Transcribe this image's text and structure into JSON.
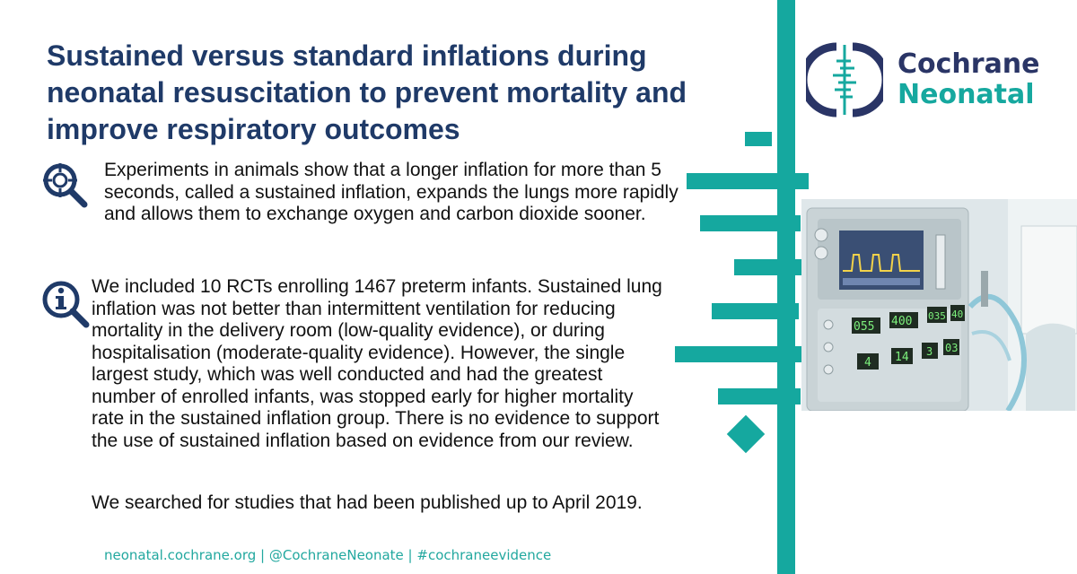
{
  "title": "Sustained versus standard inflations during neonatal resuscitation to prevent mortality and improve respiratory outcomes",
  "paragraphs": {
    "animals": "Experiments in animals show that a longer inflation for more than 5 seconds, called a sustained inflation, expands the lungs more rapidly and allows them to exchange oxygen and carbon dioxide sooner.",
    "results": "We included 10 RCTs enrolling 1467 preterm infants. Sustained lung inflation was not better than intermittent ventilation for reducing mortality in the delivery room (low-quality evidence), or during hospitalisation (moderate-quality evidence). However, the single largest study, which was well conducted and had the greatest number of enrolled infants, was stopped early for higher mortality rate in the sustained inflation group. There is no evidence to support the use of sustained inflation based on evidence from our review.",
    "search": "We searched for studies that had been published up to April 2019."
  },
  "icons": {
    "search": "magnifier-crosshair-icon",
    "info": "magnifier-info-icon"
  },
  "logo": {
    "line1": "Cochrane",
    "line2": "Neonatal"
  },
  "footer": "neonatal.cochrane.org | @CochraneNeonate | #cochraneevidence",
  "ventilator_readouts": [
    "055",
    "400",
    "035",
    "40",
    "4",
    "14",
    "3",
    "03"
  ],
  "colors": {
    "navy": "#1f3a68",
    "logo_navy": "#2a3566",
    "teal": "#15a89f",
    "text": "#111111"
  }
}
